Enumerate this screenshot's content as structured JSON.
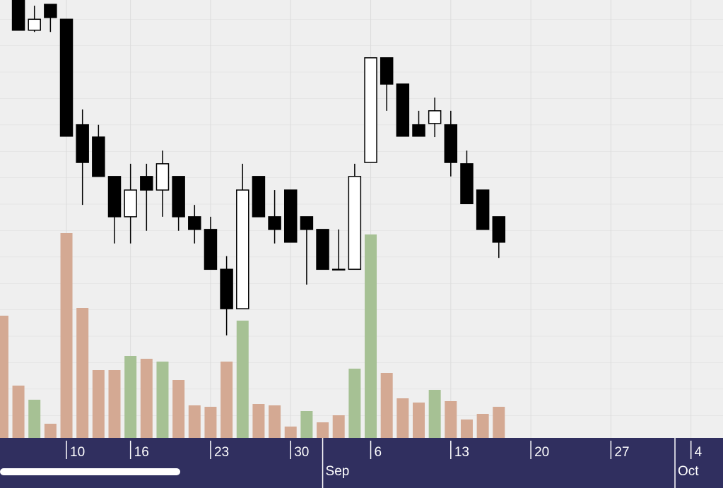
{
  "chart_data": {
    "type": "candlestick",
    "x": [
      0,
      1,
      2,
      3,
      4,
      5,
      6,
      7,
      8,
      9,
      10,
      11,
      12,
      13,
      14,
      15,
      16,
      17,
      18,
      19,
      20,
      21,
      22,
      23,
      24,
      25,
      26,
      27,
      28,
      29,
      30
    ],
    "open": [
      100,
      93.1,
      99.0,
      95.6,
      71.5,
      68.7,
      59.7,
      50.5,
      59.7,
      56.6,
      59.7,
      50.5,
      47.6,
      38.5,
      29.5,
      59.7,
      50.5,
      56.6,
      50.5,
      47.6,
      38.5,
      38.5,
      62.9,
      86.8,
      80.8,
      71.5,
      71.8,
      71.5,
      62.6,
      56.6,
      50.5
    ],
    "high": [
      100,
      98.7,
      99.0,
      95.6,
      75.0,
      71.5,
      59.7,
      62.6,
      62.6,
      65.6,
      59.7,
      53.2,
      50.5,
      41.5,
      62.6,
      59.7,
      56.6,
      56.6,
      50.5,
      47.6,
      47.6,
      62.6,
      86.8,
      86.8,
      80.8,
      74.7,
      77.7,
      74.7,
      65.6,
      56.6,
      50.5
    ],
    "low": [
      93.1,
      92.7,
      92.7,
      68.9,
      53.2,
      59.7,
      44.4,
      44.4,
      47.3,
      50.5,
      47.3,
      44.4,
      38.5,
      23.4,
      29.5,
      50.5,
      44.4,
      44.7,
      35.0,
      38.5,
      38.5,
      38.5,
      62.9,
      74.7,
      68.9,
      68.9,
      68.7,
      59.7,
      53.5,
      47.6,
      41.1
    ],
    "close": [
      93.1,
      95.6,
      96.0,
      68.9,
      62.9,
      59.7,
      50.5,
      56.6,
      56.6,
      62.6,
      50.5,
      47.6,
      38.5,
      29.5,
      56.6,
      50.5,
      47.6,
      44.7,
      47.6,
      38.5,
      38.5,
      59.7,
      86.8,
      80.8,
      68.9,
      68.9,
      74.7,
      62.9,
      53.5,
      47.6,
      44.7
    ],
    "up_color": "#ffffff",
    "down_color": "#000000",
    "ylim": [
      0,
      100
    ],
    "xlim": [
      -1.15,
      44
    ],
    "xticks": [
      {
        "value": 3,
        "label": "10"
      },
      {
        "value": 7,
        "label": "16"
      },
      {
        "value": 12,
        "label": "23"
      },
      {
        "value": 17,
        "label": "30"
      },
      {
        "value": 22,
        "label": "6"
      },
      {
        "value": 27,
        "label": "13"
      },
      {
        "value": 32,
        "label": "20"
      },
      {
        "value": 37,
        "label": "27"
      },
      {
        "value": 42,
        "label": "4"
      }
    ],
    "month_ticks": [
      {
        "value": 19,
        "label": "Sep"
      },
      {
        "value": 41,
        "label": "Oct"
      }
    ],
    "volume": {
      "x": [
        -1,
        0,
        1,
        2,
        3,
        4,
        5,
        6,
        7,
        8,
        9,
        10,
        11,
        12,
        13,
        14,
        15,
        16,
        17,
        18,
        19,
        20,
        21,
        22,
        23,
        24,
        25,
        26,
        27,
        28,
        29,
        30
      ],
      "values": [
        173,
        74,
        54,
        20,
        290,
        184,
        96,
        96,
        116,
        112,
        108,
        82,
        46,
        44,
        108,
        166,
        48,
        46,
        16,
        38,
        22,
        32,
        98,
        288,
        92,
        56,
        50,
        68,
        52,
        26,
        34,
        44
      ],
      "colors": [
        "#d4a993",
        "#d4a993",
        "#a6c194",
        "#d4a993",
        "#d4a993",
        "#d4a993",
        "#d4a993",
        "#d4a993",
        "#a6c194",
        "#d4a993",
        "#a6c194",
        "#d4a993",
        "#d4a993",
        "#d4a993",
        "#d4a993",
        "#a6c194",
        "#d4a993",
        "#d4a993",
        "#d4a993",
        "#a6c194",
        "#d4a993",
        "#d4a993",
        "#a6c194",
        "#a6c194",
        "#d4a993",
        "#d4a993",
        "#d4a993",
        "#a6c194",
        "#d4a993",
        "#d4a993",
        "#d4a993",
        "#d4a993"
      ]
    },
    "y2lim": [
      0,
      620
    ]
  }
}
